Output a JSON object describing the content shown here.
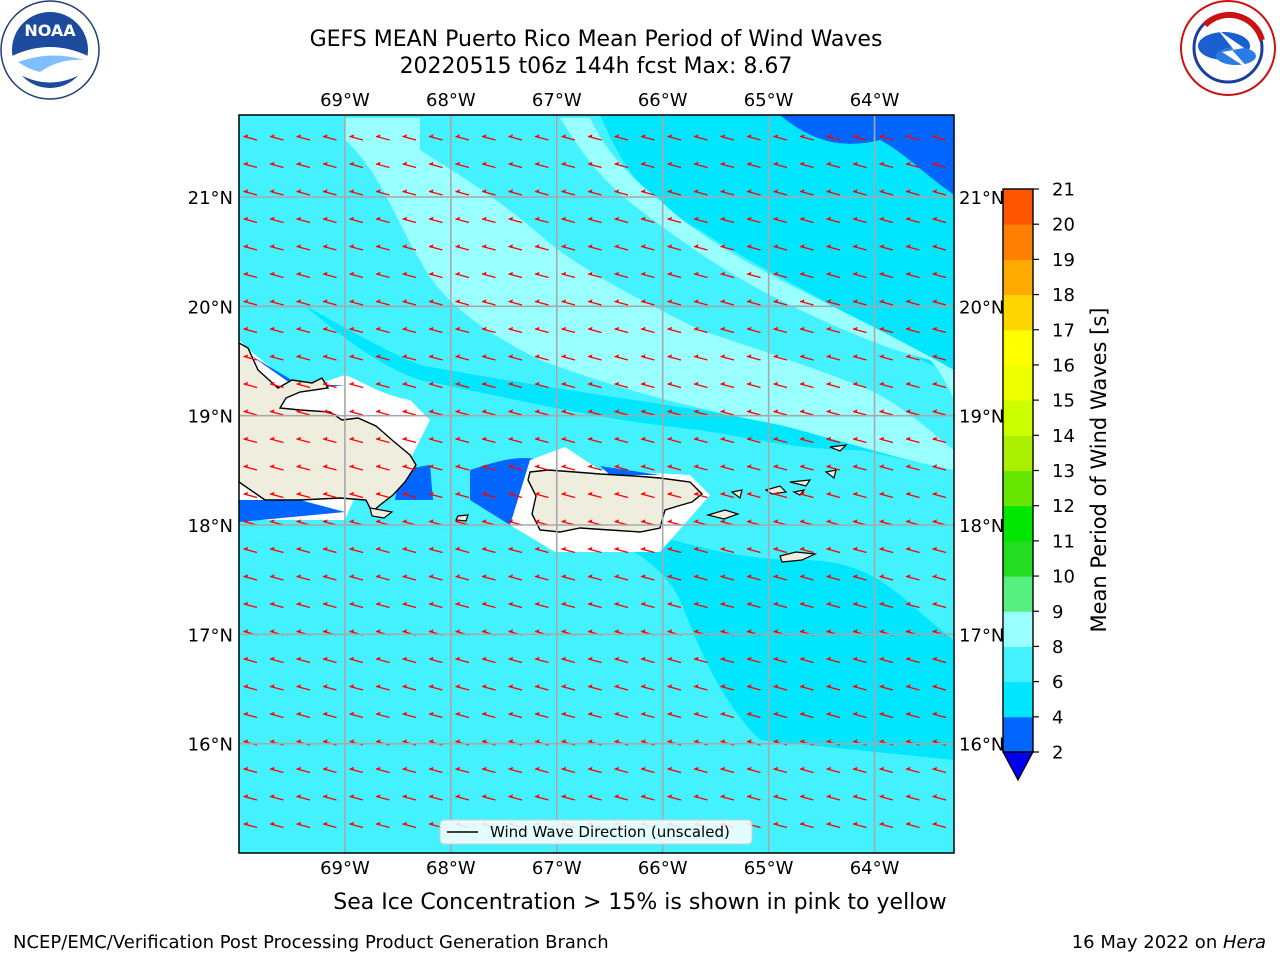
{
  "header": {
    "title_line1": "GEFS MEAN Puerto Rico Mean Period of Wind Waves",
    "title_line2": "20220515 t06z 144h fcst   Max: 8.67"
  },
  "logos": {
    "left": "NOAA",
    "left_ring": "NATIONAL OCEANIC AND ATMOSPHERIC ADMINISTRATION · U.S. DEPARTMENT OF COMMERCE",
    "right_ring": "NATIONAL WEATHER SERVICE"
  },
  "map": {
    "lon_range": [
      -70.0,
      -63.25
    ],
    "lat_range": [
      15.0,
      21.75
    ],
    "lon_ticks": [
      "69°W",
      "68°W",
      "67°W",
      "66°W",
      "65°W",
      "64°W"
    ],
    "lon_values": [
      -69,
      -68,
      -67,
      -66,
      -65,
      -64
    ],
    "lat_ticks": [
      "16°N",
      "17°N",
      "18°N",
      "19°N",
      "20°N",
      "21°N"
    ],
    "lat_values": [
      16,
      17,
      18,
      19,
      20,
      21
    ],
    "gridlines": true,
    "legend_label": "Wind Wave Direction (unscaled)",
    "legend_position": "bottom-center",
    "arrow_color": "#ff0000",
    "land_color": "#efedde"
  },
  "colorbar": {
    "label": "Mean Period of Wind Waves [s]",
    "levels": [
      2,
      4,
      6,
      8,
      9,
      10,
      11,
      12,
      13,
      14,
      15,
      16,
      17,
      18,
      19,
      20,
      21
    ],
    "colors": [
      "#0066ff",
      "#00e6ff",
      "#44f2ff",
      "#99ffff",
      "#55f080",
      "#22dd22",
      "#00e600",
      "#66e600",
      "#aaee00",
      "#ccff00",
      "#eeff00",
      "#ffff00",
      "#ffd700",
      "#ffaa00",
      "#ff8000",
      "#ff5500",
      "#ff2a00",
      "#ff0000"
    ],
    "under_color": "#0000ee"
  },
  "caption": "Sea Ice Concentration > 15% is shown in pink to yellow",
  "footer": {
    "left": "NCEP/EMC/Verification Post Processing Product Generation Branch",
    "right_prefix": "16 May 2022 on ",
    "right_italic": "Hera"
  }
}
